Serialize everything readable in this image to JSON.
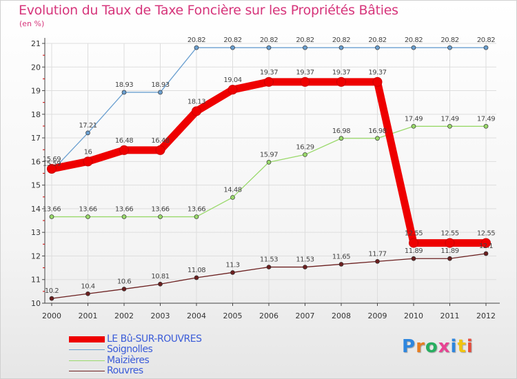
{
  "title": "Evolution du Taux de Taxe Foncière sur les Propriétés Bâties",
  "subtitle": "(en %)",
  "logo": "Proxiti",
  "chart_data": {
    "type": "line",
    "title": "Evolution du Taux de Taxe Foncière sur les Propriétés Bâties",
    "ylabel": "(en %)",
    "xlabel": "",
    "x": [
      "2000",
      "2001",
      "2002",
      "2003",
      "2004",
      "2005",
      "2006",
      "2007",
      "2008",
      "2009",
      "2010",
      "2011",
      "2012"
    ],
    "ylim": [
      10,
      21
    ],
    "yticks": [
      "10",
      "11",
      "12",
      "13",
      "14",
      "15",
      "16",
      "17",
      "18",
      "19",
      "20",
      "21"
    ],
    "legend_position": "bottom-left",
    "series": [
      {
        "name": "LE Bû-SUR-ROUVRES",
        "color": "#ee0000",
        "values": [
          15.69,
          16,
          16.48,
          16.48,
          18.13,
          19.04,
          19.37,
          19.37,
          19.37,
          19.37,
          12.55,
          12.55,
          12.55
        ],
        "labels": [
          "15.69",
          "16",
          "16.48",
          "16.48",
          "18.13",
          "19.04",
          "19.37",
          "19.37",
          "19.37",
          "19.37",
          "12.55",
          "12.55",
          "12.55"
        ]
      },
      {
        "name": "Soignolles",
        "color": "#6a9fd0",
        "values": [
          15.59,
          17.21,
          18.93,
          18.93,
          20.82,
          20.82,
          20.82,
          20.82,
          20.82,
          20.82,
          20.82,
          20.82,
          20.82
        ],
        "labels": [
          "15.59",
          "17.21",
          "18.93",
          "18.93",
          "20.82",
          "20.82",
          "20.82",
          "20.82",
          "20.82",
          "20.82",
          "20.82",
          "20.82",
          "20.82"
        ]
      },
      {
        "name": "Maizières",
        "color": "#99d96a",
        "values": [
          13.66,
          13.66,
          13.66,
          13.66,
          13.66,
          14.48,
          15.97,
          16.29,
          16.98,
          16.98,
          17.49,
          17.49,
          17.49
        ],
        "labels": [
          "13.66",
          "13.66",
          "13.66",
          "13.66",
          "13.66",
          "14.48",
          "15.97",
          "16.29",
          "16.98",
          "16.98",
          "17.49",
          "17.49",
          "17.49"
        ]
      },
      {
        "name": "Rouvres",
        "color": "#6b1f1f",
        "values": [
          10.2,
          10.4,
          10.6,
          10.81,
          11.08,
          11.3,
          11.53,
          11.53,
          11.65,
          11.77,
          11.89,
          11.89,
          12.1
        ],
        "labels": [
          "10.2",
          "10.4",
          "10.6",
          "10.81",
          "11.08",
          "11.3",
          "11.53",
          "11.53",
          "11.65",
          "11.77",
          "11.89",
          "11.89",
          "12.1"
        ]
      }
    ]
  }
}
